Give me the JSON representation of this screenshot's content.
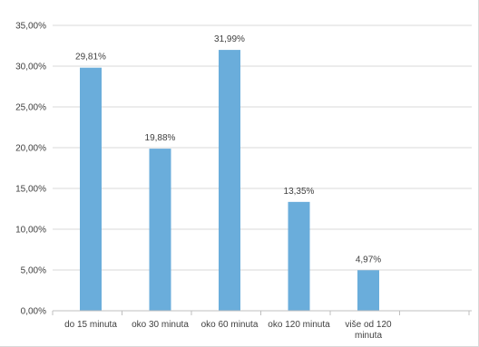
{
  "chart_data": {
    "type": "bar",
    "title": "",
    "xlabel": "",
    "ylabel": "",
    "categories": [
      [
        "do 15 minuta"
      ],
      [
        "oko 30 minuta"
      ],
      [
        "oko 60 minuta"
      ],
      [
        "oko 120 minuta"
      ],
      [
        "više od 120",
        "minuta"
      ]
    ],
    "values": [
      29.81,
      19.88,
      31.99,
      13.35,
      4.97
    ],
    "data_labels": [
      "29,81%",
      "19,88%",
      "31,99%",
      "13,35%",
      "4,97%"
    ],
    "ylim": [
      0,
      35
    ],
    "yticks": [
      0,
      5,
      10,
      15,
      20,
      25,
      30,
      35
    ],
    "ytick_labels": [
      "0,00%",
      "5,00%",
      "10,00%",
      "15,00%",
      "20,00%",
      "25,00%",
      "30,00%",
      "35,00%"
    ],
    "grid": true,
    "legend": "none",
    "colors": {
      "bar": "#6aaddb",
      "grid": "#d9d9d9",
      "axis": "#bfbfbf",
      "text": "#404040"
    }
  }
}
